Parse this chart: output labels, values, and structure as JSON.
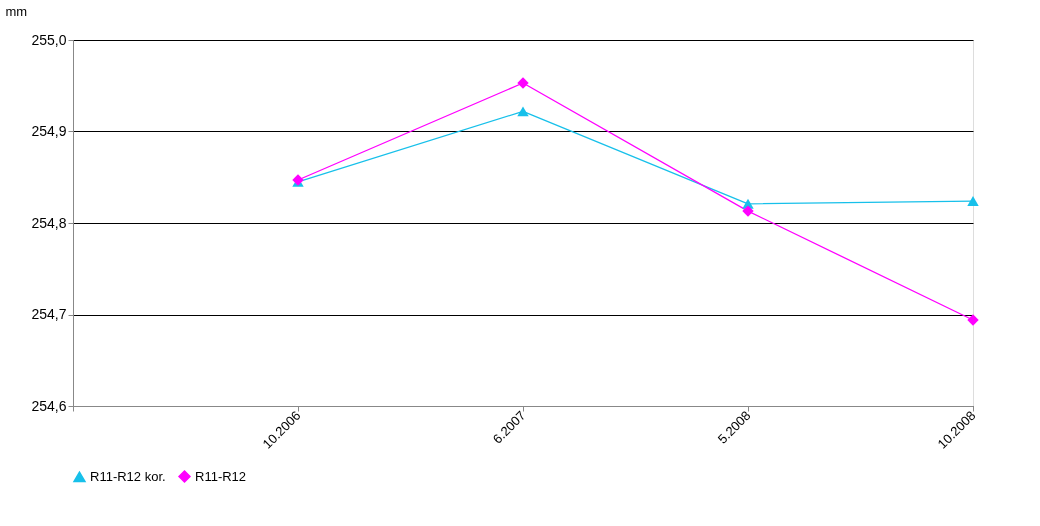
{
  "chart_data": {
    "type": "line",
    "ylabel": "mm",
    "categories": [
      null,
      "10.2006",
      "6.2007",
      "5.2008",
      "10.2008"
    ],
    "series": [
      {
        "name": "R11-R12 kor.",
        "color": "#17c0ea",
        "marker": "triangle",
        "values": [
          null,
          254.845,
          254.922,
          254.821,
          254.824
        ]
      },
      {
        "name": "R11-R12",
        "color": "#ff00ff",
        "marker": "diamond",
        "values": [
          null,
          254.847,
          254.953,
          254.813,
          254.694
        ]
      }
    ],
    "ylim": [
      254.6,
      255.0
    ],
    "yticks": [
      {
        "value": 254.6,
        "label": "254,6"
      },
      {
        "value": 254.7,
        "label": "254,7"
      },
      {
        "value": 254.8,
        "label": "254,8"
      },
      {
        "value": 254.9,
        "label": "254,9"
      },
      {
        "value": 255.0,
        "label": "255,0"
      }
    ],
    "grid": "y",
    "legend": "bottom",
    "line_style": "solid"
  }
}
